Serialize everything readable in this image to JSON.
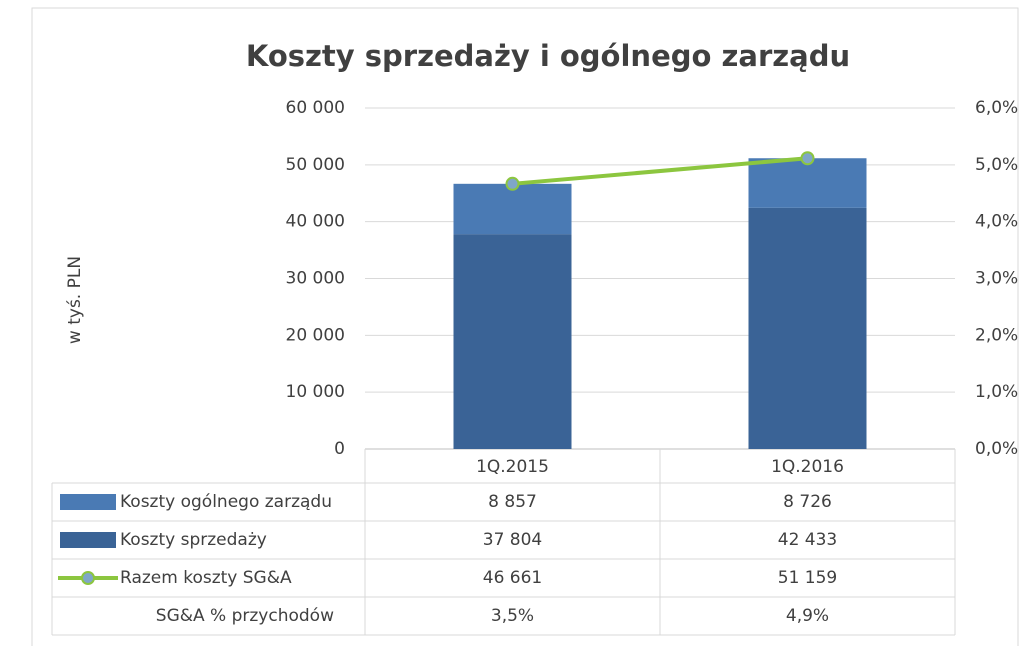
{
  "chart_data": {
    "type": "bar",
    "stacked": true,
    "title": "Koszty sprzedaży i ogólnego zarządu",
    "ylabel": "w tyś. PLN",
    "categories": [
      "1Q.2015",
      "1Q.2016"
    ],
    "series": [
      {
        "name": "Koszty ogólnego zarządu",
        "color": "#4a7ab4",
        "values": [
          8857,
          8726
        ],
        "value_labels": [
          "8 857",
          "8 726"
        ]
      },
      {
        "name": "Koszty sprzedaży",
        "color": "#3a6396",
        "values": [
          37804,
          42433
        ],
        "value_labels": [
          "37 804",
          "42 433"
        ]
      },
      {
        "name": "Razem koszty SG&A",
        "type": "line",
        "color": "#8cc63f",
        "values": [
          46661,
          51159
        ],
        "value_labels": [
          "46 661",
          "51 159"
        ]
      },
      {
        "name": "SG&A % przychodów",
        "values": [
          3.5,
          4.9
        ],
        "value_labels": [
          "3,5%",
          "4,9%"
        ]
      }
    ],
    "ylim": [
      0,
      60000
    ],
    "yticks": [
      0,
      {
        "value": 10000,
        "label": "10 000"
      },
      {
        "value": 20000,
        "label": "20 000"
      },
      {
        "value": 30000,
        "label": "30 000"
      },
      {
        "value": 40000,
        "label": "40 000"
      },
      {
        "value": 50000,
        "label": "50 000"
      },
      {
        "value": 60000,
        "label": "60 000"
      }
    ],
    "y2lim": [
      0,
      6
    ],
    "y2ticks": [
      {
        "value": 0,
        "label": "0,0%"
      },
      {
        "value": 1,
        "label": "1,0%"
      },
      {
        "value": 2,
        "label": "2,0%"
      },
      {
        "value": 3,
        "label": "3,0%"
      },
      {
        "value": 4,
        "label": "4,0%"
      },
      {
        "value": 5,
        "label": "5,0%"
      },
      {
        "value": 6,
        "label": "6,0%"
      }
    ],
    "grid": true
  }
}
